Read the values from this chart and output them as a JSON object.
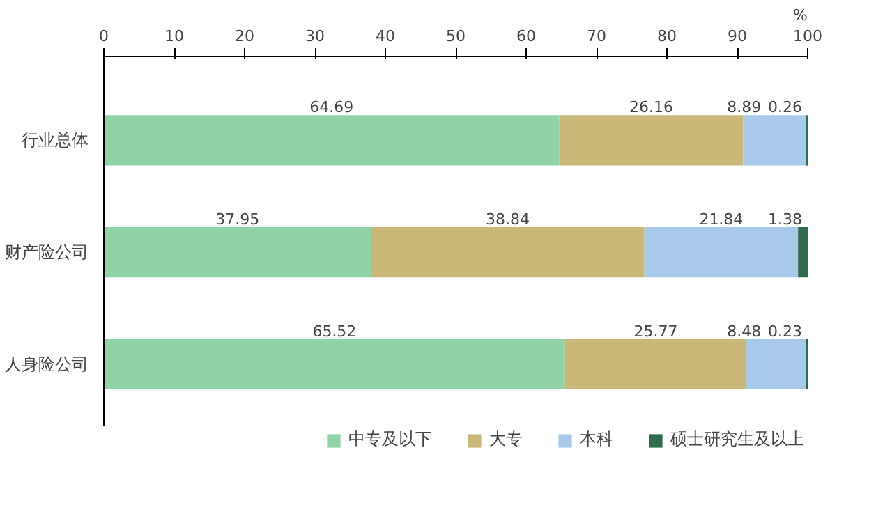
{
  "chart_data": {
    "type": "bar",
    "orientation": "horizontal",
    "stacked": true,
    "data_labels": true,
    "grid": false,
    "legend": "bottom",
    "xlabel": "%",
    "xlim": [
      0,
      100
    ],
    "xticks": [
      0,
      10,
      20,
      30,
      40,
      50,
      60,
      70,
      80,
      90,
      100
    ],
    "categories": [
      "行业总体",
      "财产险公司",
      "人身险公司"
    ],
    "series": [
      {
        "name": "中专及以下",
        "color": "#8fd3a6",
        "values": [
          64.69,
          37.95,
          65.52
        ]
      },
      {
        "name": "大专",
        "color": "#c9b878",
        "values": [
          26.16,
          38.84,
          25.77
        ]
      },
      {
        "name": "本科",
        "color": "#a9c9ea",
        "values": [
          8.89,
          21.84,
          8.48
        ]
      },
      {
        "name": "硕士研究生及以上",
        "color": "#2e6b4f",
        "values": [
          0.26,
          1.38,
          0.23
        ]
      }
    ]
  }
}
